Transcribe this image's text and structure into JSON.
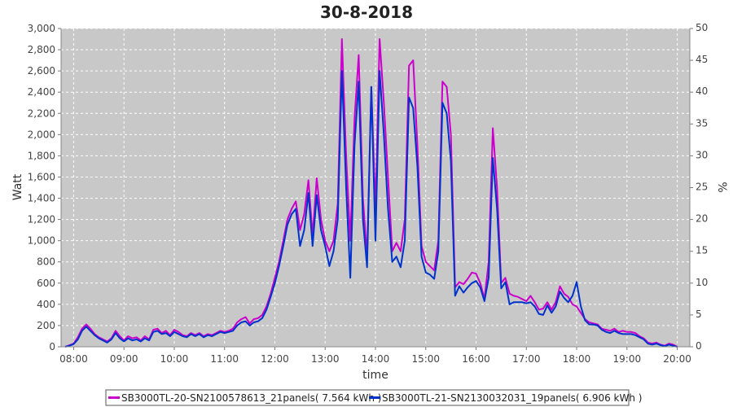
{
  "chart_data": {
    "type": "line",
    "title": "30-8-2018",
    "xlabel": "time",
    "ylabel": "Watt",
    "y2label": "%",
    "ylim": [
      0,
      3000
    ],
    "y2lim": [
      0,
      50
    ],
    "xlim": [
      "07:45",
      "20:15"
    ],
    "grid": true,
    "legend_position": "bottom",
    "x_ticks": [
      "08:00",
      "09:00",
      "10:00",
      "11:00",
      "12:00",
      "13:00",
      "14:00",
      "15:00",
      "16:00",
      "17:00",
      "18:00",
      "19:00",
      "20:00"
    ],
    "y_ticks": [
      "0",
      "200",
      "400",
      "600",
      "800",
      "1,000",
      "1,200",
      "1,400",
      "1,600",
      "1,800",
      "2,000",
      "2,200",
      "2,400",
      "2,600",
      "2,800",
      "3,000"
    ],
    "y2_ticks": [
      "0",
      "5",
      "10",
      "15",
      "20",
      "25",
      "30",
      "35",
      "40",
      "45",
      "50"
    ],
    "series": [
      {
        "name": "SB3000TL-20-SN2100578613_21panels( 7.564 kWh )",
        "color": "#cc00cc",
        "points": [
          [
            "07:50",
            0
          ],
          [
            "07:55",
            15
          ],
          [
            "08:00",
            30
          ],
          [
            "08:05",
            90
          ],
          [
            "08:10",
            170
          ],
          [
            "08:15",
            210
          ],
          [
            "08:20",
            170
          ],
          [
            "08:25",
            120
          ],
          [
            "08:30",
            90
          ],
          [
            "08:35",
            70
          ],
          [
            "08:40",
            50
          ],
          [
            "08:45",
            80
          ],
          [
            "08:50",
            150
          ],
          [
            "08:55",
            100
          ],
          [
            "09:00",
            60
          ],
          [
            "09:05",
            100
          ],
          [
            "09:10",
            80
          ],
          [
            "09:15",
            90
          ],
          [
            "09:20",
            60
          ],
          [
            "09:25",
            100
          ],
          [
            "09:30",
            70
          ],
          [
            "09:35",
            160
          ],
          [
            "09:40",
            170
          ],
          [
            "09:45",
            130
          ],
          [
            "09:50",
            150
          ],
          [
            "09:55",
            110
          ],
          [
            "10:00",
            160
          ],
          [
            "10:05",
            140
          ],
          [
            "10:10",
            110
          ],
          [
            "10:15",
            100
          ],
          [
            "10:20",
            130
          ],
          [
            "10:25",
            110
          ],
          [
            "10:30",
            130
          ],
          [
            "10:35",
            100
          ],
          [
            "10:40",
            120
          ],
          [
            "10:45",
            110
          ],
          [
            "10:50",
            130
          ],
          [
            "10:55",
            150
          ],
          [
            "11:00",
            140
          ],
          [
            "11:05",
            150
          ],
          [
            "11:10",
            170
          ],
          [
            "11:15",
            230
          ],
          [
            "11:20",
            260
          ],
          [
            "11:25",
            280
          ],
          [
            "11:30",
            220
          ],
          [
            "11:35",
            260
          ],
          [
            "11:40",
            270
          ],
          [
            "11:45",
            300
          ],
          [
            "11:50",
            380
          ],
          [
            "11:55",
            500
          ],
          [
            "12:00",
            650
          ],
          [
            "12:05",
            800
          ],
          [
            "12:10",
            1000
          ],
          [
            "12:15",
            1200
          ],
          [
            "12:20",
            1300
          ],
          [
            "12:25",
            1370
          ],
          [
            "12:30",
            1100
          ],
          [
            "12:35",
            1250
          ],
          [
            "12:40",
            1570
          ],
          [
            "12:45",
            1050
          ],
          [
            "12:50",
            1590
          ],
          [
            "12:55",
            1200
          ],
          [
            "13:00",
            1000
          ],
          [
            "13:05",
            900
          ],
          [
            "13:10",
            1000
          ],
          [
            "13:15",
            1350
          ],
          [
            "13:20",
            2900
          ],
          [
            "13:25",
            1800
          ],
          [
            "13:30",
            1000
          ],
          [
            "13:35",
            2150
          ],
          [
            "13:40",
            2750
          ],
          [
            "13:45",
            1400
          ],
          [
            "13:50",
            850
          ],
          [
            "13:55",
            2450
          ],
          [
            "14:00",
            1300
          ],
          [
            "14:05",
            2900
          ],
          [
            "14:10",
            2300
          ],
          [
            "14:15",
            1600
          ],
          [
            "14:20",
            900
          ],
          [
            "14:25",
            980
          ],
          [
            "14:30",
            900
          ],
          [
            "14:35",
            1200
          ],
          [
            "14:40",
            2650
          ],
          [
            "14:45",
            2700
          ],
          [
            "14:50",
            1900
          ],
          [
            "14:55",
            950
          ],
          [
            "15:00",
            800
          ],
          [
            "15:05",
            760
          ],
          [
            "15:10",
            720
          ],
          [
            "15:15",
            1000
          ],
          [
            "15:20",
            2500
          ],
          [
            "15:25",
            2450
          ],
          [
            "15:30",
            2000
          ],
          [
            "15:35",
            560
          ],
          [
            "15:40",
            610
          ],
          [
            "15:45",
            590
          ],
          [
            "15:50",
            640
          ],
          [
            "15:55",
            700
          ],
          [
            "16:00",
            690
          ],
          [
            "16:05",
            600
          ],
          [
            "16:10",
            450
          ],
          [
            "16:15",
            800
          ],
          [
            "16:20",
            2060
          ],
          [
            "16:25",
            1500
          ],
          [
            "16:30",
            600
          ],
          [
            "16:35",
            650
          ],
          [
            "16:40",
            500
          ],
          [
            "16:45",
            480
          ],
          [
            "16:50",
            470
          ],
          [
            "16:55",
            450
          ],
          [
            "17:00",
            430
          ],
          [
            "17:05",
            480
          ],
          [
            "17:10",
            420
          ],
          [
            "17:15",
            350
          ],
          [
            "17:20",
            360
          ],
          [
            "17:25",
            420
          ],
          [
            "17:30",
            350
          ],
          [
            "17:35",
            420
          ],
          [
            "17:40",
            570
          ],
          [
            "17:45",
            500
          ],
          [
            "17:50",
            470
          ],
          [
            "17:55",
            400
          ],
          [
            "18:00",
            380
          ],
          [
            "18:05",
            320
          ],
          [
            "18:10",
            260
          ],
          [
            "18:15",
            230
          ],
          [
            "18:20",
            220
          ],
          [
            "18:25",
            210
          ],
          [
            "18:30",
            170
          ],
          [
            "18:35",
            160
          ],
          [
            "18:40",
            150
          ],
          [
            "18:45",
            170
          ],
          [
            "18:50",
            140
          ],
          [
            "18:55",
            150
          ],
          [
            "19:00",
            140
          ],
          [
            "19:05",
            140
          ],
          [
            "19:10",
            130
          ],
          [
            "19:15",
            100
          ],
          [
            "19:20",
            80
          ],
          [
            "19:25",
            40
          ],
          [
            "19:30",
            30
          ],
          [
            "19:35",
            40
          ],
          [
            "19:40",
            20
          ],
          [
            "19:45",
            10
          ],
          [
            "19:50",
            30
          ],
          [
            "19:55",
            20
          ],
          [
            "20:00",
            0
          ]
        ]
      },
      {
        "name": "SB3000TL-21-SN2130032031_19panels( 6.906 kWh )",
        "color": "#0033cc",
        "points": [
          [
            "07:50",
            0
          ],
          [
            "07:55",
            10
          ],
          [
            "08:00",
            25
          ],
          [
            "08:05",
            70
          ],
          [
            "08:10",
            150
          ],
          [
            "08:15",
            190
          ],
          [
            "08:20",
            150
          ],
          [
            "08:25",
            110
          ],
          [
            "08:30",
            80
          ],
          [
            "08:35",
            60
          ],
          [
            "08:40",
            40
          ],
          [
            "08:45",
            70
          ],
          [
            "08:50",
            130
          ],
          [
            "08:55",
            80
          ],
          [
            "09:00",
            50
          ],
          [
            "09:05",
            80
          ],
          [
            "09:10",
            60
          ],
          [
            "09:15",
            70
          ],
          [
            "09:20",
            50
          ],
          [
            "09:25",
            80
          ],
          [
            "09:30",
            60
          ],
          [
            "09:35",
            140
          ],
          [
            "09:40",
            150
          ],
          [
            "09:45",
            120
          ],
          [
            "09:50",
            130
          ],
          [
            "09:55",
            100
          ],
          [
            "10:00",
            140
          ],
          [
            "10:05",
            120
          ],
          [
            "10:10",
            100
          ],
          [
            "10:15",
            90
          ],
          [
            "10:20",
            120
          ],
          [
            "10:25",
            100
          ],
          [
            "10:30",
            120
          ],
          [
            "10:35",
            90
          ],
          [
            "10:40",
            110
          ],
          [
            "10:45",
            100
          ],
          [
            "10:50",
            120
          ],
          [
            "10:55",
            140
          ],
          [
            "11:00",
            130
          ],
          [
            "11:05",
            140
          ],
          [
            "11:10",
            150
          ],
          [
            "11:15",
            200
          ],
          [
            "11:20",
            230
          ],
          [
            "11:25",
            240
          ],
          [
            "11:30",
            200
          ],
          [
            "11:35",
            230
          ],
          [
            "11:40",
            240
          ],
          [
            "11:45",
            270
          ],
          [
            "11:50",
            350
          ],
          [
            "11:55",
            470
          ],
          [
            "12:00",
            600
          ],
          [
            "12:05",
            760
          ],
          [
            "12:10",
            950
          ],
          [
            "12:15",
            1150
          ],
          [
            "12:20",
            1250
          ],
          [
            "12:25",
            1300
          ],
          [
            "12:30",
            950
          ],
          [
            "12:35",
            1100
          ],
          [
            "12:40",
            1450
          ],
          [
            "12:45",
            950
          ],
          [
            "12:50",
            1430
          ],
          [
            "12:55",
            1100
          ],
          [
            "13:00",
            950
          ],
          [
            "13:05",
            760
          ],
          [
            "13:10",
            900
          ],
          [
            "13:15",
            1200
          ],
          [
            "13:20",
            2600
          ],
          [
            "13:25",
            1500
          ],
          [
            "13:30",
            650
          ],
          [
            "13:35",
            1900
          ],
          [
            "13:40",
            2500
          ],
          [
            "13:45",
            1200
          ],
          [
            "13:50",
            750
          ],
          [
            "13:55",
            2450
          ],
          [
            "14:00",
            1000
          ],
          [
            "14:05",
            2600
          ],
          [
            "14:10",
            2000
          ],
          [
            "14:15",
            1300
          ],
          [
            "14:20",
            800
          ],
          [
            "14:25",
            850
          ],
          [
            "14:30",
            750
          ],
          [
            "14:35",
            1000
          ],
          [
            "14:40",
            2350
          ],
          [
            "14:45",
            2250
          ],
          [
            "14:50",
            1700
          ],
          [
            "14:55",
            850
          ],
          [
            "15:00",
            700
          ],
          [
            "15:05",
            680
          ],
          [
            "15:10",
            640
          ],
          [
            "15:15",
            900
          ],
          [
            "15:20",
            2300
          ],
          [
            "15:25",
            2200
          ],
          [
            "15:30",
            1750
          ],
          [
            "15:35",
            480
          ],
          [
            "15:40",
            570
          ],
          [
            "15:45",
            510
          ],
          [
            "15:50",
            560
          ],
          [
            "15:55",
            600
          ],
          [
            "16:00",
            620
          ],
          [
            "16:05",
            560
          ],
          [
            "16:10",
            430
          ],
          [
            "16:15",
            650
          ],
          [
            "16:20",
            1780
          ],
          [
            "16:25",
            1300
          ],
          [
            "16:30",
            550
          ],
          [
            "16:35",
            610
          ],
          [
            "16:40",
            400
          ],
          [
            "16:45",
            420
          ],
          [
            "16:50",
            420
          ],
          [
            "16:55",
            420
          ],
          [
            "17:00",
            410
          ],
          [
            "17:05",
            420
          ],
          [
            "17:10",
            380
          ],
          [
            "17:15",
            310
          ],
          [
            "17:20",
            300
          ],
          [
            "17:25",
            390
          ],
          [
            "17:30",
            320
          ],
          [
            "17:35",
            380
          ],
          [
            "17:40",
            520
          ],
          [
            "17:45",
            460
          ],
          [
            "17:50",
            420
          ],
          [
            "17:55",
            480
          ],
          [
            "18:00",
            610
          ],
          [
            "18:05",
            380
          ],
          [
            "18:10",
            250
          ],
          [
            "18:15",
            210
          ],
          [
            "18:20",
            210
          ],
          [
            "18:25",
            200
          ],
          [
            "18:30",
            160
          ],
          [
            "18:35",
            140
          ],
          [
            "18:40",
            130
          ],
          [
            "18:45",
            150
          ],
          [
            "18:50",
            130
          ],
          [
            "18:55",
            120
          ],
          [
            "19:00",
            120
          ],
          [
            "19:05",
            120
          ],
          [
            "19:10",
            110
          ],
          [
            "19:15",
            90
          ],
          [
            "19:20",
            70
          ],
          [
            "19:25",
            30
          ],
          [
            "19:30",
            20
          ],
          [
            "19:35",
            30
          ],
          [
            "19:40",
            15
          ],
          [
            "19:45",
            5
          ],
          [
            "19:50",
            20
          ],
          [
            "19:55",
            10
          ],
          [
            "20:00",
            0
          ]
        ]
      }
    ]
  }
}
